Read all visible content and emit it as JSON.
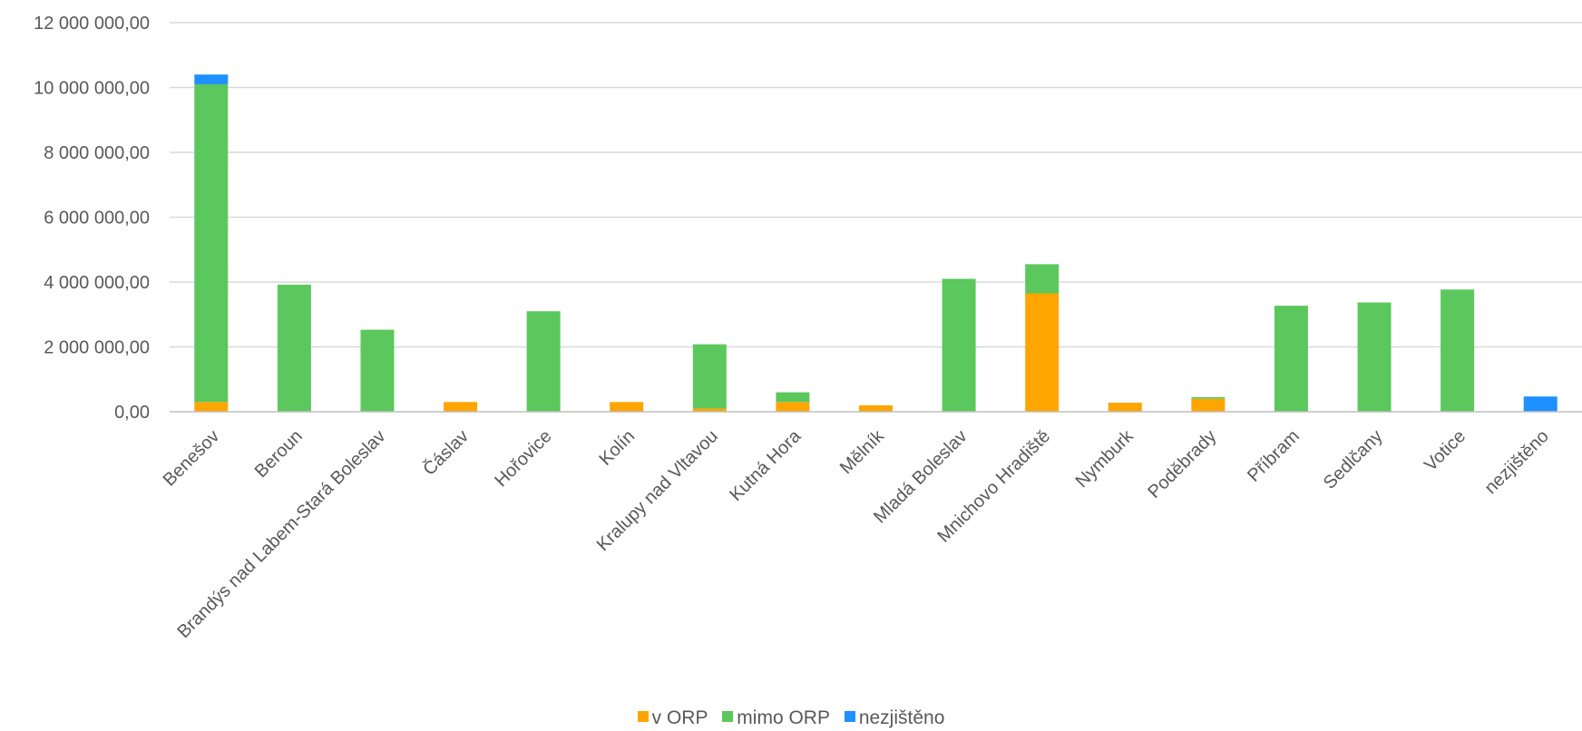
{
  "chart_data": {
    "type": "bar",
    "stacked": true,
    "categories": [
      "Benešov",
      "Beroun",
      "Brandýs nad Labem-Stará Boleslav",
      "Čáslav",
      "Hořovice",
      "Kolín",
      "Kralupy nad Vltavou",
      "Kutná Hora",
      "Mělník",
      "Mladá Boleslav",
      "Mnichovo Hradiště",
      "Nymburk",
      "Poděbrady",
      "Příbram",
      "Sedlčany",
      "Votice",
      "nezjištěno"
    ],
    "series": [
      {
        "name": "v ORP",
        "color": "#FFA500",
        "values": [
          300000,
          0,
          0,
          300000,
          0,
          300000,
          100000,
          300000,
          200000,
          0,
          3650000,
          280000,
          400000,
          0,
          0,
          0,
          0
        ]
      },
      {
        "name": "mimo ORP",
        "color": "#5BC85E",
        "values": [
          9800000,
          3920000,
          2530000,
          0,
          3100000,
          0,
          1980000,
          300000,
          0,
          4100000,
          900000,
          0,
          50000,
          3270000,
          3370000,
          3770000,
          0
        ]
      },
      {
        "name": "nezjištěno",
        "color": "#1E90FF",
        "values": [
          300000,
          0,
          0,
          0,
          0,
          0,
          0,
          0,
          0,
          0,
          0,
          0,
          0,
          0,
          0,
          0,
          470000
        ]
      }
    ],
    "yticks": [
      "0,00",
      "2 000 000,00",
      "4 000 000,00",
      "6 000 000,00",
      "8 000 000,00",
      "10 000 000,00",
      "12 000 000,00"
    ],
    "ylim": [
      0,
      12000000
    ],
    "grid": true,
    "legend_position": "bottom"
  }
}
